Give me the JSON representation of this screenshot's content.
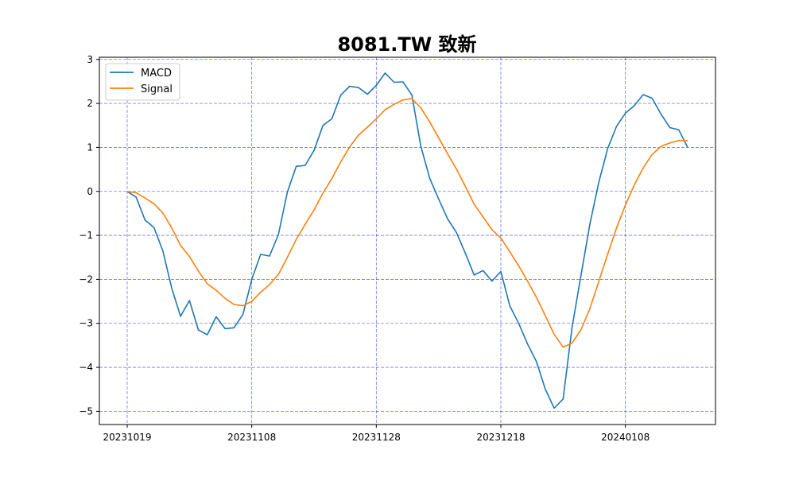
{
  "chart_data": {
    "type": "line",
    "title": "8081.TW 致新",
    "xlabel": "",
    "ylabel": "",
    "x_tick_labels": [
      "20231019",
      "20231108",
      "20231128",
      "20231218",
      "20240108"
    ],
    "y_tick_labels": [
      "3",
      "2",
      "1",
      "0",
      "−1",
      "−2",
      "−3",
      "−4",
      "−5"
    ],
    "ylim": [
      -5.3,
      3.05
    ],
    "grid": true,
    "legend_position": "top-left",
    "series": [
      {
        "name": "MACD",
        "color": "#1f77b4",
        "values": [
          0.0,
          -0.13,
          -0.65,
          -0.82,
          -1.35,
          -2.2,
          -2.84,
          -2.48,
          -3.15,
          -3.26,
          -2.85,
          -3.12,
          -3.1,
          -2.8,
          -2.0,
          -1.43,
          -1.47,
          -0.98,
          -0.02,
          0.57,
          0.59,
          0.93,
          1.5,
          1.65,
          2.19,
          2.39,
          2.36,
          2.21,
          2.41,
          2.69,
          2.48,
          2.49,
          2.19,
          1.03,
          0.3,
          -0.17,
          -0.62,
          -0.93,
          -1.4,
          -1.9,
          -1.8,
          -2.04,
          -1.82,
          -2.6,
          -3.0,
          -3.47,
          -3.87,
          -4.5,
          -4.93,
          -4.72,
          -3.1,
          -1.92,
          -0.75,
          0.2,
          0.97,
          1.48,
          1.78,
          1.95,
          2.2,
          2.12,
          1.76,
          1.45,
          1.4,
          1.0
        ]
      },
      {
        "name": "Signal",
        "color": "#ff7f0e",
        "values": [
          0.0,
          -0.03,
          -0.15,
          -0.28,
          -0.49,
          -0.83,
          -1.23,
          -1.48,
          -1.81,
          -2.1,
          -2.25,
          -2.43,
          -2.57,
          -2.6,
          -2.5,
          -2.29,
          -2.12,
          -1.89,
          -1.5,
          -1.09,
          -0.75,
          -0.42,
          -0.04,
          0.29,
          0.67,
          1.01,
          1.28,
          1.46,
          1.65,
          1.86,
          1.98,
          2.08,
          2.11,
          1.9,
          1.58,
          1.22,
          0.86,
          0.51,
          0.12,
          -0.29,
          -0.58,
          -0.87,
          -1.06,
          -1.37,
          -1.69,
          -2.04,
          -2.41,
          -2.83,
          -3.25,
          -3.54,
          -3.45,
          -3.15,
          -2.67,
          -2.05,
          -1.43,
          -0.83,
          -0.31,
          0.15,
          0.53,
          0.84,
          1.02,
          1.1,
          1.16,
          1.15
        ]
      }
    ]
  }
}
